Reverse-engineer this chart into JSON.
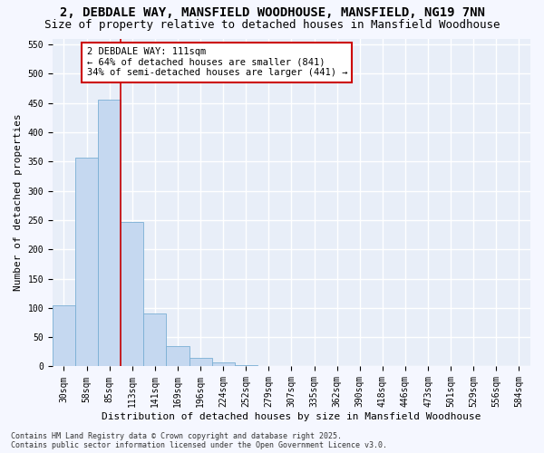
{
  "title": "2, DEBDALE WAY, MANSFIELD WOODHOUSE, MANSFIELD, NG19 7NN",
  "subtitle": "Size of property relative to detached houses in Mansfield Woodhouse",
  "xlabel": "Distribution of detached houses by size in Mansfield Woodhouse",
  "ylabel": "Number of detached properties",
  "categories": [
    "30sqm",
    "58sqm",
    "85sqm",
    "113sqm",
    "141sqm",
    "169sqm",
    "196sqm",
    "224sqm",
    "252sqm",
    "279sqm",
    "307sqm",
    "335sqm",
    "362sqm",
    "390sqm",
    "418sqm",
    "446sqm",
    "473sqm",
    "501sqm",
    "529sqm",
    "556sqm",
    "584sqm"
  ],
  "values": [
    104,
    357,
    456,
    247,
    90,
    35,
    14,
    7,
    2,
    0,
    0,
    1,
    0,
    0,
    0,
    0,
    0,
    0,
    0,
    0,
    1
  ],
  "bar_color": "#c5d8f0",
  "bar_edge_color": "#7aafd4",
  "vline_x": 2.5,
  "vline_color": "#cc0000",
  "annotation_text": "2 DEBDALE WAY: 111sqm\n← 64% of detached houses are smaller (841)\n34% of semi-detached houses are larger (441) →",
  "annotation_box_facecolor": "#ffffff",
  "annotation_box_edgecolor": "#cc0000",
  "ylim": [
    0,
    560
  ],
  "yticks": [
    0,
    50,
    100,
    150,
    200,
    250,
    300,
    350,
    400,
    450,
    500,
    550
  ],
  "footnote": "Contains HM Land Registry data © Crown copyright and database right 2025.\nContains public sector information licensed under the Open Government Licence v3.0.",
  "bg_color": "#f5f7ff",
  "plot_bg_color": "#e8eef8",
  "grid_color": "#ffffff",
  "title_fontsize": 10,
  "subtitle_fontsize": 9,
  "axis_label_fontsize": 8,
  "tick_fontsize": 7,
  "annotation_fontsize": 7.5,
  "footnote_fontsize": 6
}
